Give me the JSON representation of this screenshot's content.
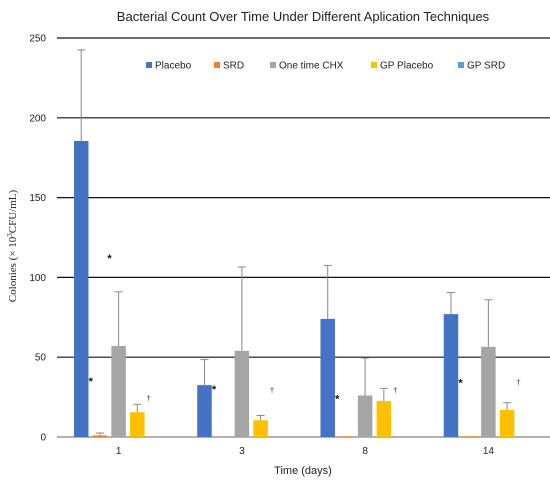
{
  "chart_data": {
    "type": "bar",
    "title": "Bacterial Count Over Time  Under Different Aplication Techniques",
    "xlabel": "Time (days)",
    "ylabel_main": "Colonies (× 10",
    "ylabel_sup": "3",
    "ylabel_tail": "CFU/mL)",
    "categories": [
      "1",
      "3",
      "8",
      "14"
    ],
    "ylim": [
      0,
      250
    ],
    "yticks": [
      0,
      50,
      100,
      150,
      200,
      250
    ],
    "grid": true,
    "legend_position": "top",
    "series": [
      {
        "name": "Placebo",
        "color": "#4472C4",
        "values": [
          185.5,
          32.5,
          74,
          77
        ],
        "err": [
          57,
          16,
          33.5,
          13.5
        ]
      },
      {
        "name": "SRD",
        "color": "#ED7D31",
        "values": [
          1,
          0,
          0.5,
          0.5
        ],
        "err": [
          1.5,
          0,
          0,
          0
        ]
      },
      {
        "name": "One time CHX",
        "color": "#A5A5A5",
        "values": [
          57,
          54,
          26,
          56.5
        ],
        "err": [
          34,
          52.5,
          23.5,
          29.5
        ]
      },
      {
        "name": "GP Placebo",
        "color": "#FFC000",
        "values": [
          15.5,
          10.5,
          22.5,
          17
        ],
        "err": [
          5,
          3,
          8,
          4.5
        ]
      },
      {
        "name": "GP SRD",
        "color": "#5B9BD5",
        "values": [
          0,
          0,
          0,
          0
        ],
        "err": [
          0,
          0,
          0,
          0
        ]
      }
    ],
    "annotations": [
      {
        "text": "*",
        "category": 0,
        "y": 35,
        "kind": "star",
        "offset": 0.9
      },
      {
        "text": "*",
        "category": 0,
        "y": 112,
        "kind": "star",
        "offset": 1.9
      },
      {
        "text": "†",
        "category": 0,
        "y": 25,
        "kind": "dagger",
        "offset": 4.0
      },
      {
        "text": "*",
        "category": 1,
        "y": 30,
        "kind": "star",
        "offset": 0.9
      },
      {
        "text": "†",
        "category": 1,
        "y": 30,
        "kind": "dagger",
        "offset": 4.0
      },
      {
        "text": "*",
        "category": 2,
        "y": 24,
        "kind": "star",
        "offset": 0.9
      },
      {
        "text": "†",
        "category": 2,
        "y": 30,
        "kind": "dagger",
        "offset": 4.0
      },
      {
        "text": "*",
        "category": 3,
        "y": 34,
        "kind": "star",
        "offset": 0.9
      },
      {
        "text": "†",
        "category": 3,
        "y": 35,
        "kind": "dagger",
        "offset": 4.0
      }
    ]
  }
}
